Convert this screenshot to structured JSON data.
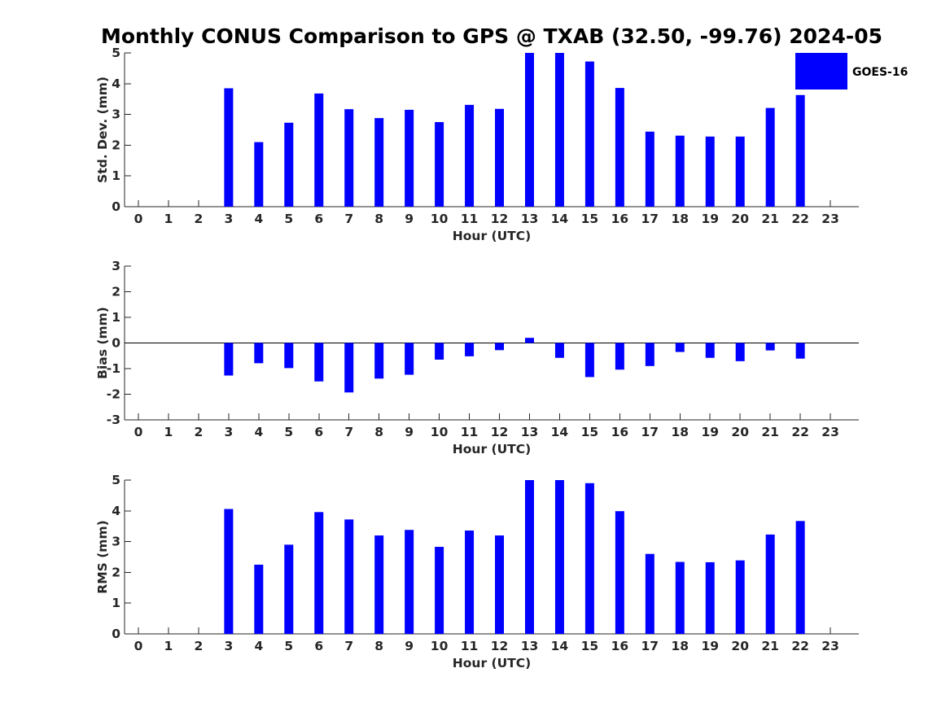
{
  "chart_data": {
    "title": "Monthly CONUS Comparison to GPS @ TXAB (32.50, -99.76) 2024-05",
    "legend": {
      "label": "GOES-16",
      "color": "#0000ff",
      "placement": "top-right"
    },
    "bar_color": "#0000ff",
    "panels": [
      {
        "type": "bar",
        "name": "std-dev",
        "xlabel": "Hour (UTC)",
        "ylabel": "Std. Dev. (mm)",
        "ylim": [
          0,
          5
        ],
        "yticks": [
          "0",
          "1",
          "2",
          "3",
          "4",
          "5"
        ],
        "x": [
          "0",
          "1",
          "2",
          "3",
          "4",
          "5",
          "6",
          "7",
          "8",
          "9",
          "10",
          "11",
          "12",
          "13",
          "14",
          "15",
          "16",
          "17",
          "18",
          "19",
          "20",
          "21",
          "22",
          "23"
        ],
        "values": [
          null,
          null,
          null,
          3.85,
          2.1,
          2.73,
          3.68,
          3.17,
          2.88,
          3.15,
          2.75,
          3.31,
          3.18,
          5.0,
          5.0,
          4.72,
          3.86,
          2.44,
          2.31,
          2.28,
          2.28,
          3.21,
          3.63,
          null
        ]
      },
      {
        "type": "bar",
        "name": "bias",
        "xlabel": "Hour (UTC)",
        "ylabel": "Bias (mm)",
        "ylim": [
          -3,
          3
        ],
        "yticks": [
          "-3",
          "-2",
          "-1",
          "0",
          "1",
          "2",
          "3"
        ],
        "x": [
          "0",
          "1",
          "2",
          "3",
          "4",
          "5",
          "6",
          "7",
          "8",
          "9",
          "10",
          "11",
          "12",
          "13",
          "14",
          "15",
          "16",
          "17",
          "18",
          "19",
          "20",
          "21",
          "22",
          "23"
        ],
        "values": [
          null,
          null,
          null,
          -1.27,
          -0.79,
          -0.98,
          -1.5,
          -1.93,
          -1.39,
          -1.24,
          -0.65,
          -0.52,
          -0.28,
          0.2,
          -0.58,
          -1.33,
          -1.04,
          -0.9,
          -0.35,
          -0.58,
          -0.71,
          -0.29,
          -0.61,
          null
        ]
      },
      {
        "type": "bar",
        "name": "rms",
        "xlabel": "Hour (UTC)",
        "ylabel": "RMS (mm)",
        "ylim": [
          0,
          5
        ],
        "yticks": [
          "0",
          "1",
          "2",
          "3",
          "4",
          "5"
        ],
        "x": [
          "0",
          "1",
          "2",
          "3",
          "4",
          "5",
          "6",
          "7",
          "8",
          "9",
          "10",
          "11",
          "12",
          "13",
          "14",
          "15",
          "16",
          "17",
          "18",
          "19",
          "20",
          "21",
          "22",
          "23"
        ],
        "values": [
          null,
          null,
          null,
          4.06,
          2.25,
          2.9,
          3.96,
          3.72,
          3.2,
          3.38,
          2.83,
          3.36,
          3.2,
          5.0,
          5.0,
          4.9,
          3.99,
          2.6,
          2.34,
          2.33,
          2.39,
          3.23,
          3.67,
          null
        ]
      }
    ]
  }
}
